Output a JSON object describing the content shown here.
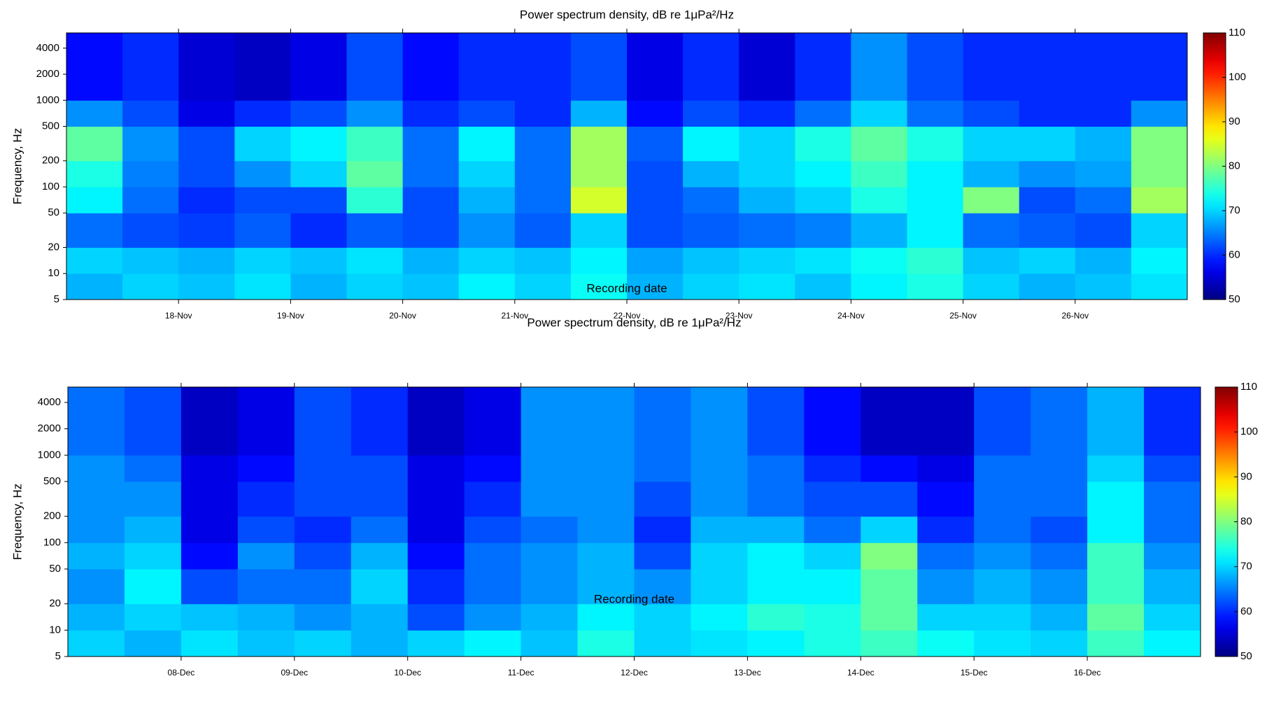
{
  "chart_data": [
    {
      "type": "heatmap",
      "title": "Power spectrum density, dB re 1μPa²/Hz",
      "xlabel": "Recording date",
      "ylabel": "Frequency, Hz",
      "xlim": [
        0,
        10
      ],
      "xticks": [
        {
          "value": 1,
          "label": "18-Nov"
        },
        {
          "value": 2,
          "label": "19-Nov"
        },
        {
          "value": 3,
          "label": "20-Nov"
        },
        {
          "value": 4,
          "label": "21-Nov"
        },
        {
          "value": 5,
          "label": "22-Nov"
        },
        {
          "value": 6,
          "label": "23-Nov"
        },
        {
          "value": 7,
          "label": "24-Nov"
        },
        {
          "value": 8,
          "label": "25-Nov"
        },
        {
          "value": 9,
          "label": "26-Nov"
        }
      ],
      "ylim": [
        5,
        6000
      ],
      "yscale": "log",
      "yticks": [
        5,
        10,
        20,
        50,
        100,
        200,
        500,
        1000,
        2000,
        4000
      ],
      "clim": [
        50,
        110
      ],
      "cticks": [
        50,
        60,
        70,
        80,
        90,
        100,
        110
      ],
      "colormap": "jet",
      "x_edges": [
        0,
        0.5,
        1,
        1.5,
        2,
        2.5,
        3,
        3.5,
        4,
        4.5,
        5,
        5.5,
        6,
        6.5,
        7,
        7.5,
        8,
        8.5,
        9,
        9.5,
        10
      ],
      "y_edges": [
        5,
        10,
        20,
        50,
        100,
        200,
        500,
        1000,
        6000
      ],
      "z": [
        [
          68,
          70,
          69,
          71,
          68,
          70,
          69,
          72,
          70,
          73,
          68,
          70,
          71,
          69,
          72,
          74,
          70,
          68,
          69,
          71
        ],
        [
          70,
          69,
          68,
          70,
          69,
          71,
          68,
          70,
          69,
          72,
          67,
          69,
          70,
          71,
          73,
          75,
          69,
          70,
          68,
          72
        ],
        [
          64,
          62,
          61,
          63,
          60,
          63,
          62,
          66,
          63,
          70,
          62,
          63,
          64,
          65,
          68,
          72,
          64,
          63,
          62,
          70
        ],
        [
          72,
          64,
          60,
          62,
          62,
          75,
          62,
          68,
          64,
          85,
          62,
          64,
          68,
          70,
          74,
          72,
          80,
          62,
          64,
          82
        ],
        [
          74,
          65,
          62,
          66,
          70,
          78,
          64,
          70,
          64,
          82,
          62,
          68,
          70,
          72,
          76,
          72,
          68,
          66,
          67,
          80
        ],
        [
          78,
          66,
          62,
          70,
          72,
          76,
          64,
          72,
          64,
          82,
          63,
          72,
          70,
          74,
          78,
          74,
          70,
          70,
          68,
          80
        ],
        [
          66,
          62,
          56,
          60,
          62,
          66,
          60,
          62,
          60,
          68,
          58,
          62,
          60,
          64,
          70,
          64,
          62,
          60,
          60,
          66
        ],
        [
          58,
          60,
          55,
          54,
          56,
          62,
          58,
          60,
          60,
          62,
          56,
          60,
          55,
          60,
          66,
          62,
          60,
          60,
          60,
          60
        ]
      ]
    },
    {
      "type": "heatmap",
      "title": "Power spectrum density, dB re 1μPa²/Hz",
      "xlabel": "Recording date",
      "ylabel": "Frequency, Hz",
      "xlim": [
        0,
        10
      ],
      "xticks": [
        {
          "value": 1,
          "label": "08-Dec"
        },
        {
          "value": 2,
          "label": "09-Dec"
        },
        {
          "value": 3,
          "label": "10-Dec"
        },
        {
          "value": 4,
          "label": "11-Dec"
        },
        {
          "value": 5,
          "label": "12-Dec"
        },
        {
          "value": 6,
          "label": "13-Dec"
        },
        {
          "value": 7,
          "label": "14-Dec"
        },
        {
          "value": 8,
          "label": "15-Dec"
        },
        {
          "value": 9,
          "label": "16-Dec"
        }
      ],
      "ylim": [
        5,
        6000
      ],
      "yscale": "log",
      "yticks": [
        5,
        10,
        20,
        50,
        100,
        200,
        500,
        1000,
        2000,
        4000
      ],
      "clim": [
        50,
        110
      ],
      "cticks": [
        50,
        60,
        70,
        80,
        90,
        100,
        110
      ],
      "colormap": "jet",
      "x_edges": [
        0,
        0.5,
        1,
        1.5,
        2,
        2.5,
        3,
        3.5,
        4,
        4.5,
        5,
        5.5,
        6,
        6.5,
        7,
        7.5,
        8,
        8.5,
        9,
        9.5,
        10
      ],
      "y_edges": [
        5,
        10,
        20,
        50,
        100,
        200,
        500,
        1000,
        6000
      ],
      "z": [
        [
          70,
          68,
          71,
          69,
          70,
          68,
          70,
          72,
          69,
          74,
          70,
          71,
          72,
          74,
          76,
          73,
          71,
          70,
          76,
          72
        ],
        [
          68,
          70,
          69,
          68,
          66,
          68,
          62,
          66,
          68,
          72,
          70,
          72,
          75,
          74,
          78,
          70,
          70,
          68,
          78,
          70
        ],
        [
          66,
          72,
          62,
          64,
          64,
          70,
          60,
          64,
          66,
          68,
          66,
          70,
          72,
          72,
          78,
          66,
          68,
          66,
          76,
          68
        ],
        [
          68,
          70,
          58,
          66,
          62,
          68,
          58,
          64,
          66,
          68,
          62,
          70,
          72,
          70,
          80,
          64,
          66,
          64,
          76,
          66
        ],
        [
          66,
          68,
          56,
          62,
          60,
          64,
          56,
          62,
          64,
          66,
          60,
          68,
          68,
          64,
          70,
          60,
          64,
          62,
          72,
          64
        ],
        [
          66,
          66,
          56,
          60,
          62,
          62,
          56,
          60,
          66,
          66,
          62,
          66,
          64,
          62,
          62,
          58,
          64,
          64,
          72,
          64
        ],
        [
          66,
          64,
          56,
          58,
          62,
          62,
          56,
          58,
          66,
          66,
          64,
          66,
          64,
          60,
          58,
          56,
          64,
          64,
          70,
          62
        ],
        [
          64,
          62,
          54,
          56,
          62,
          60,
          54,
          56,
          66,
          66,
          64,
          66,
          62,
          58,
          54,
          54,
          62,
          64,
          68,
          60
        ]
      ]
    }
  ]
}
